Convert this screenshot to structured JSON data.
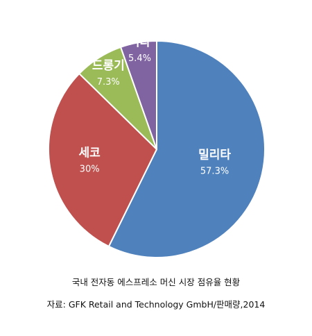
{
  "chart_data": {
    "type": "pie",
    "categories": [
      "밀리타",
      "세코",
      "드롱기",
      "기타"
    ],
    "values": [
      57.3,
      30,
      7.3,
      5.4
    ],
    "value_labels": [
      "57.3%",
      "30%",
      "7.3%",
      "5.4%"
    ],
    "colors": [
      "#4f81bd",
      "#c0504d",
      "#9bbb59",
      "#8064a2"
    ],
    "start": "12 o'clock, clockwise",
    "legend": "none (labels on slices)"
  },
  "caption": {
    "title": "국내 전자동 에스프레소 머신 시장 점유율 현황",
    "source": "자료: GFK Retail and Technology GmbH/판매량,2014"
  }
}
